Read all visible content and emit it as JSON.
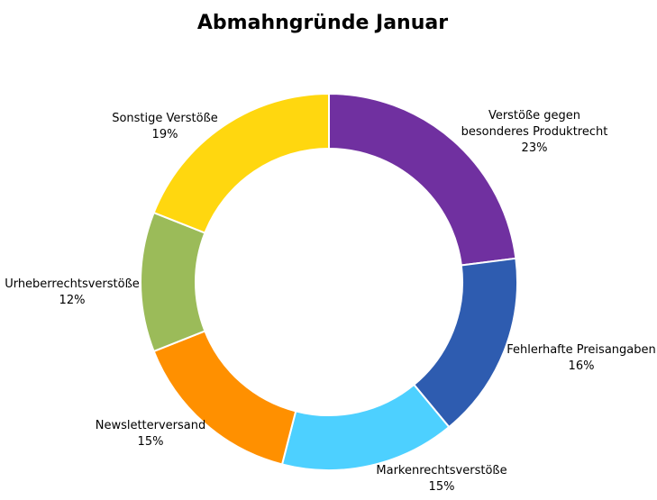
{
  "chart_data": {
    "type": "pie",
    "variant": "donut",
    "title": "Abmahngründe Januar",
    "legend": "none",
    "slices": [
      {
        "label": [
          "Verstöße gegen",
          "besonderes Produktrecht"
        ],
        "percent_label": "23%",
        "value": 23,
        "color": "#7030a0"
      },
      {
        "label": [
          "Fehlerhafte Preisangaben"
        ],
        "percent_label": "16%",
        "value": 16,
        "color": "#2e5cb0"
      },
      {
        "label": [
          "Markenrechtsverstöße"
        ],
        "percent_label": "15%",
        "value": 15,
        "color": "#4dd0ff"
      },
      {
        "label": [
          "Newsletterversand"
        ],
        "percent_label": "15%",
        "value": 15,
        "color": "#ff9000"
      },
      {
        "label": [
          "Urheberrechtsverstöße"
        ],
        "percent_label": "12%",
        "value": 12,
        "color": "#9bbb59"
      },
      {
        "label": [
          "Sonstige Verstöße"
        ],
        "percent_label": "19%",
        "value": 19,
        "color": "#ffd70f"
      }
    ]
  }
}
